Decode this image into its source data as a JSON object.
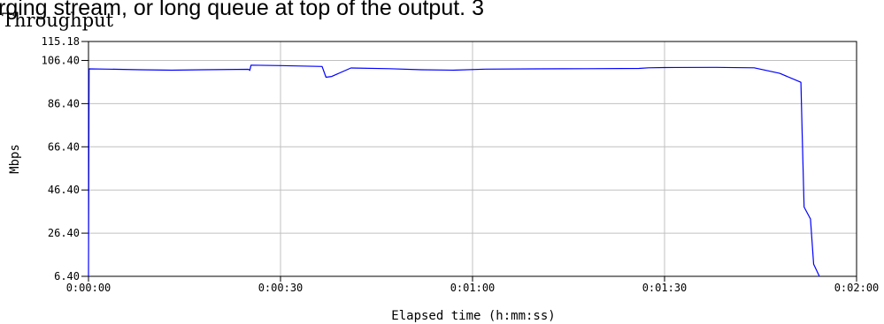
{
  "caption": "rging stream, or long queue at top of the output. 3",
  "chart_data": {
    "type": "line",
    "title": "Throughput",
    "xlabel": "Elapsed time (h:mm:ss)",
    "ylabel": "Mbps",
    "xlim": [
      0,
      120
    ],
    "ylim": [
      6.4,
      115.18
    ],
    "x_ticks": [
      {
        "value": 0,
        "label": "0:00:00"
      },
      {
        "value": 30,
        "label": "0:00:30"
      },
      {
        "value": 60,
        "label": "0:01:00"
      },
      {
        "value": 90,
        "label": "0:01:30"
      },
      {
        "value": 120,
        "label": "0:02:00"
      }
    ],
    "y_ticks": [
      {
        "value": 6.4,
        "label": "6.40"
      },
      {
        "value": 26.4,
        "label": "26.40"
      },
      {
        "value": 46.4,
        "label": "46.40"
      },
      {
        "value": 66.4,
        "label": "66.40"
      },
      {
        "value": 86.4,
        "label": "86.40"
      },
      {
        "value": 106.4,
        "label": "106.40"
      },
      {
        "value": 115.18,
        "label": "115.18"
      }
    ],
    "grid": true,
    "series": [
      {
        "color": "#0000ff",
        "x": [
          0,
          0.1,
          3,
          8,
          13,
          18,
          25,
          25.2,
          25.4,
          30,
          36.5,
          37.1,
          38,
          41,
          47,
          52,
          57,
          62,
          70,
          78,
          86,
          87.5,
          90,
          98,
          104,
          108,
          111.3,
          111.5,
          111.8,
          112.8,
          113.3,
          114.2
        ],
        "y": [
          6.4,
          102.5,
          102.4,
          102.1,
          101.9,
          102.1,
          102.3,
          101.8,
          104.2,
          104.0,
          103.6,
          98.6,
          99.0,
          102.9,
          102.6,
          102.1,
          101.9,
          102.4,
          102.5,
          102.6,
          102.7,
          103.0,
          103.1,
          103.2,
          103.0,
          100.4,
          96.3,
          73.0,
          38.5,
          33.0,
          12.0,
          6.4
        ]
      }
    ]
  }
}
